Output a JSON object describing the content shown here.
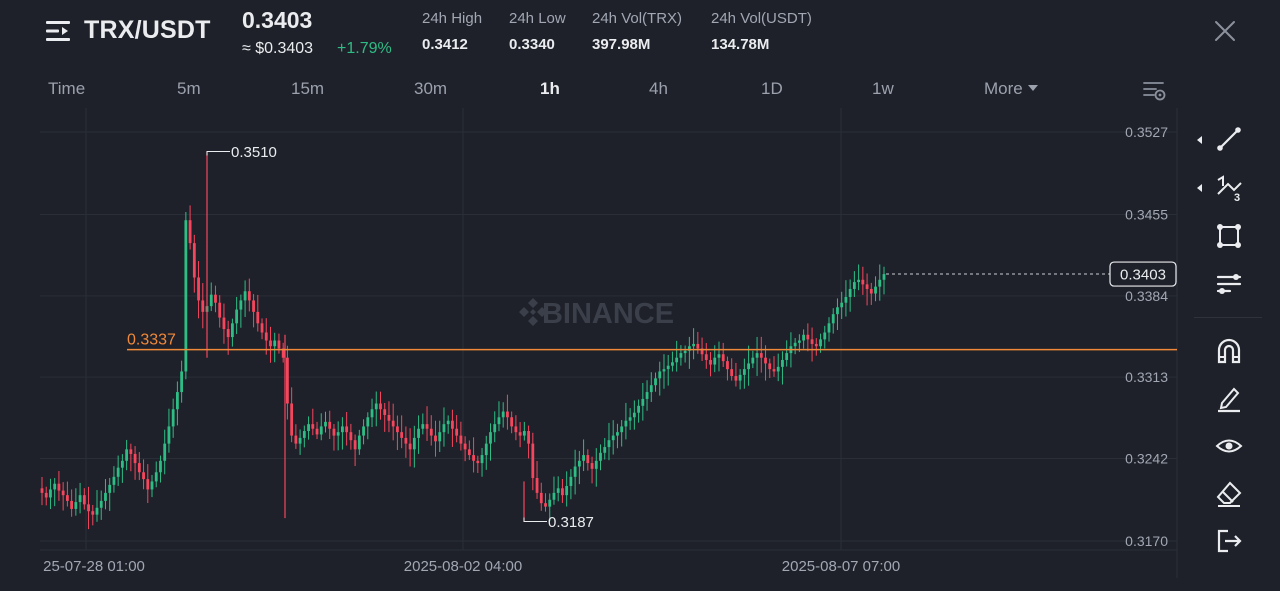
{
  "header": {
    "pair": "TRX/USDT",
    "price": "0.3403",
    "price_usd": "≈ $0.3403",
    "change": "+1.79%",
    "stats": [
      {
        "label": "24h High",
        "value": "0.3412"
      },
      {
        "label": "24h Low",
        "value": "0.3340"
      },
      {
        "label": "24h Vol(TRX)",
        "value": "397.98M"
      },
      {
        "label": "24h Vol(USDT)",
        "value": "134.78M"
      }
    ]
  },
  "timeframes": {
    "items": [
      "Time",
      "5m",
      "15m",
      "30m",
      "1h",
      "4h",
      "1D",
      "1w",
      "More"
    ],
    "active": "1h"
  },
  "chart_data": {
    "type": "candlestick",
    "watermark": "BINANCE",
    "y_ticks": [
      0.3527,
      0.3455,
      0.3384,
      0.3313,
      0.3242,
      0.317
    ],
    "x_ticks": [
      "25-07-28 01:00",
      "2025-08-02 04:00",
      "2025-08-07 07:00"
    ],
    "ylim": [
      0.3155,
      0.3545
    ],
    "current_price": 0.3403,
    "current_price_label": "0.3403",
    "alert_line": {
      "value": 0.3337,
      "label": "0.3337"
    },
    "annotations": [
      {
        "label": "0.3510",
        "value": 0.351,
        "type": "high"
      },
      {
        "label": "0.3187",
        "value": 0.3187,
        "type": "low"
      }
    ],
    "trend_closes": [
      0.3212,
      0.3208,
      0.3215,
      0.322,
      0.3214,
      0.321,
      0.3205,
      0.3198,
      0.3204,
      0.321,
      0.3202,
      0.3196,
      0.3193,
      0.3199,
      0.3205,
      0.3212,
      0.3219,
      0.3226,
      0.3234,
      0.324,
      0.325,
      0.3246,
      0.3238,
      0.323,
      0.3224,
      0.3215,
      0.3222,
      0.323,
      0.324,
      0.3255,
      0.327,
      0.3285,
      0.33,
      0.3318,
      0.345,
      0.343,
      0.34,
      0.338,
      0.337,
      0.3375,
      0.3385,
      0.3378,
      0.3365,
      0.3355,
      0.3348,
      0.336,
      0.3372,
      0.338,
      0.3388,
      0.338,
      0.337,
      0.336,
      0.3352,
      0.3345,
      0.334,
      0.3345,
      0.3338,
      0.333,
      0.329,
      0.3262,
      0.3255,
      0.326,
      0.3266,
      0.3272,
      0.3268,
      0.3263,
      0.327,
      0.3274,
      0.3268,
      0.3262,
      0.3265,
      0.327,
      0.3265,
      0.3258,
      0.325,
      0.3262,
      0.327,
      0.3278,
      0.3285,
      0.329,
      0.3285,
      0.328,
      0.3275,
      0.327,
      0.3265,
      0.326,
      0.3255,
      0.325,
      0.326,
      0.3268,
      0.3272,
      0.3268,
      0.3262,
      0.3257,
      0.3265,
      0.3272,
      0.3275,
      0.3268,
      0.3262,
      0.3255,
      0.325,
      0.3245,
      0.324,
      0.3238,
      0.3245,
      0.3255,
      0.3265,
      0.3272,
      0.3278,
      0.3283,
      0.3278,
      0.327,
      0.3265,
      0.3262,
      0.3266,
      0.3255,
      0.3225,
      0.3212,
      0.3203,
      0.32,
      0.3206,
      0.3212,
      0.3216,
      0.321,
      0.3218,
      0.3226,
      0.3235,
      0.324,
      0.3245,
      0.3238,
      0.3233,
      0.324,
      0.3247,
      0.3252,
      0.3258,
      0.3262,
      0.3265,
      0.327,
      0.3275,
      0.3278,
      0.3282,
      0.3288,
      0.3294,
      0.33,
      0.3306,
      0.3312,
      0.3318,
      0.332,
      0.3323,
      0.3326,
      0.333,
      0.3334,
      0.3336,
      0.334,
      0.3342,
      0.3338,
      0.3333,
      0.3328,
      0.3324,
      0.333,
      0.3333,
      0.3327,
      0.332,
      0.3314,
      0.331,
      0.3315,
      0.332,
      0.3325,
      0.333,
      0.3334,
      0.333,
      0.3325,
      0.332,
      0.3318,
      0.3322,
      0.3328,
      0.3334,
      0.334,
      0.3343,
      0.3345,
      0.335,
      0.3346,
      0.3342,
      0.334,
      0.3346,
      0.3352,
      0.336,
      0.3368,
      0.3374,
      0.3378,
      0.3383,
      0.339,
      0.3396,
      0.3398,
      0.3394,
      0.339,
      0.3386,
      0.3392,
      0.3398,
      0.3403
    ]
  },
  "toolbar": {
    "tools": [
      "trend-line-icon",
      "fibonacci-icon",
      "shape-icon",
      "indicator-icon",
      "magnet-icon",
      "pen-icon",
      "eye-icon",
      "eraser-icon",
      "exit-icon"
    ]
  },
  "colors": {
    "up": "#2ebd85",
    "down": "#f6465d",
    "alert": "#f0893a",
    "background": "#1e2129"
  }
}
